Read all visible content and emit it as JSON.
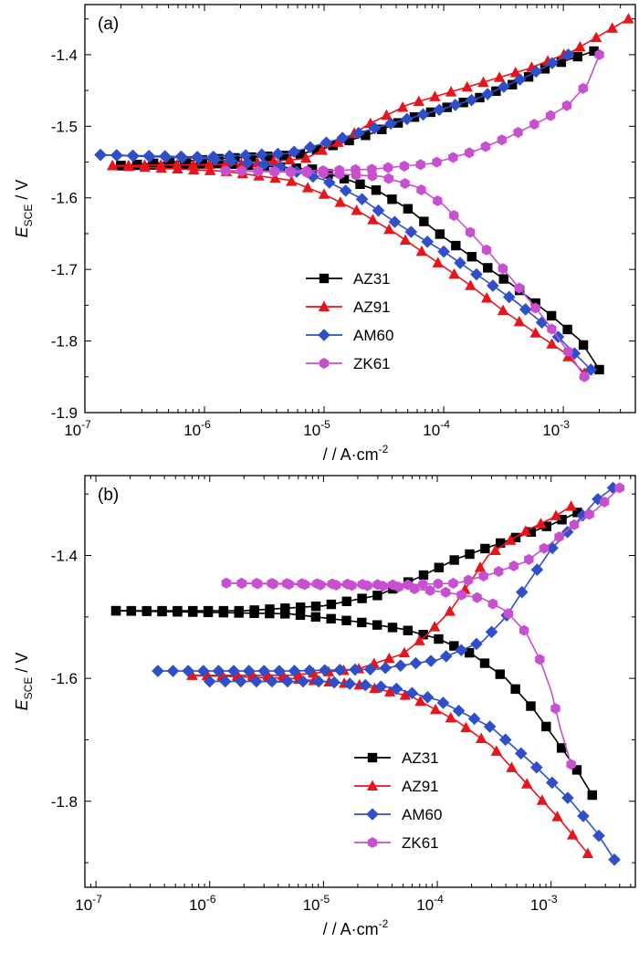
{
  "colors": {
    "AZ31": "#000000",
    "AZ91": "#e8141c",
    "AM60": "#2f4fc9",
    "ZK61": "#c850d0"
  },
  "chart_data": [
    {
      "panel_label": "(a)",
      "type": "line",
      "x_scale": "log",
      "xlim": [
        1e-07,
        0.004
      ],
      "ylim": [
        -1.9,
        -1.33
      ],
      "xticks": [
        {
          "v": 1e-07,
          "base": "10",
          "exp": "-7"
        },
        {
          "v": 1e-06,
          "base": "10",
          "exp": "-6"
        },
        {
          "v": 1e-05,
          "base": "10",
          "exp": "-5"
        },
        {
          "v": 0.0001,
          "base": "10",
          "exp": "-4"
        },
        {
          "v": 0.001,
          "base": "10",
          "exp": "-3"
        }
      ],
      "yticks": [
        {
          "v": -1.4,
          "label": "-1.4"
        },
        {
          "v": -1.5,
          "label": "-1.5"
        },
        {
          "v": -1.6,
          "label": "-1.6"
        },
        {
          "v": -1.7,
          "label": "-1.7"
        },
        {
          "v": -1.8,
          "label": "-1.8"
        },
        {
          "v": -1.9,
          "label": "-1.9"
        }
      ],
      "xlabel": "/ / A·cm",
      "xlabel_sup": "-2",
      "ylabel_main": "E",
      "ylabel_sub": "SCE",
      "ylabel_unit": " / V",
      "legend_position": "middle",
      "series": [
        {
          "name": "AZ31",
          "anodic": [
            [
              2e-07,
              -1.555
            ],
            [
              1.4e-06,
              -1.545
            ],
            [
              6e-06,
              -1.54
            ],
            [
              1.3e-05,
              -1.525
            ],
            [
              2.5e-05,
              -1.51
            ],
            [
              5e-05,
              -1.49
            ],
            [
              0.0001,
              -1.475
            ],
            [
              0.0002,
              -1.46
            ],
            [
              0.0004,
              -1.44
            ],
            [
              0.0008,
              -1.415
            ],
            [
              0.0018,
              -1.395
            ]
          ],
          "cathodic": [
            [
              2e-07,
              -1.555
            ],
            [
              1.4e-06,
              -1.552
            ],
            [
              8e-06,
              -1.56
            ],
            [
              1.6e-05,
              -1.575
            ],
            [
              2.8e-05,
              -1.59
            ],
            [
              5e-05,
              -1.615
            ],
            [
              0.0001,
              -1.655
            ],
            [
              0.0002,
              -1.69
            ],
            [
              0.0004,
              -1.725
            ],
            [
              0.0008,
              -1.765
            ],
            [
              0.0014,
              -1.8
            ],
            [
              0.002,
              -1.84
            ]
          ]
        },
        {
          "name": "AZ91",
          "anodic": [
            [
              1.7e-07,
              -1.555
            ],
            [
              2e-06,
              -1.553
            ],
            [
              7e-06,
              -1.545
            ],
            [
              1.4e-05,
              -1.52
            ],
            [
              2.5e-05,
              -1.495
            ],
            [
              5e-05,
              -1.47
            ],
            [
              0.0001,
              -1.455
            ],
            [
              0.0002,
              -1.44
            ],
            [
              0.0005,
              -1.42
            ],
            [
              0.0012,
              -1.395
            ],
            [
              0.0035,
              -1.35
            ]
          ],
          "cathodic": [
            [
              1.7e-07,
              -1.555
            ],
            [
              1.5e-06,
              -1.563
            ],
            [
              5e-06,
              -1.575
            ],
            [
              1e-05,
              -1.595
            ],
            [
              2e-05,
              -1.62
            ],
            [
              4e-05,
              -1.65
            ],
            [
              8e-05,
              -1.685
            ],
            [
              0.00016,
              -1.72
            ],
            [
              0.0003,
              -1.755
            ],
            [
              0.0006,
              -1.79
            ],
            [
              0.001,
              -1.815
            ],
            [
              0.0015,
              -1.845
            ]
          ]
        },
        {
          "name": "AM60",
          "anodic": [
            [
              1.35e-07,
              -1.54
            ],
            [
              1e-06,
              -1.543
            ],
            [
              5e-06,
              -1.538
            ],
            [
              1.2e-05,
              -1.52
            ],
            [
              3e-05,
              -1.5
            ],
            [
              8e-05,
              -1.48
            ],
            [
              0.0002,
              -1.46
            ],
            [
              0.0005,
              -1.43
            ],
            [
              0.0011,
              -1.4
            ]
          ],
          "cathodic": [
            [
              1.35e-07,
              -1.54
            ],
            [
              1e-06,
              -1.545
            ],
            [
              4e-06,
              -1.555
            ],
            [
              1e-05,
              -1.575
            ],
            [
              2e-05,
              -1.6
            ],
            [
              4e-05,
              -1.635
            ],
            [
              0.0001,
              -1.675
            ],
            [
              0.0002,
              -1.71
            ],
            [
              0.0004,
              -1.745
            ],
            [
              0.0008,
              -1.785
            ],
            [
              0.0012,
              -1.815
            ],
            [
              0.0017,
              -1.84
            ]
          ]
        },
        {
          "name": "ZK61",
          "anodic": [
            [
              1.5e-06,
              -1.562
            ],
            [
              4e-06,
              -1.563
            ],
            [
              1e-05,
              -1.562
            ],
            [
              2.5e-05,
              -1.56
            ],
            [
              8e-05,
              -1.552
            ],
            [
              0.00018,
              -1.535
            ],
            [
              0.00035,
              -1.515
            ],
            [
              0.0007,
              -1.49
            ],
            [
              0.0011,
              -1.47
            ],
            [
              0.0016,
              -1.44
            ],
            [
              0.002,
              -1.4
            ]
          ],
          "cathodic": [
            [
              1.5e-06,
              -1.562
            ],
            [
              8e-06,
              -1.565
            ],
            [
              3e-05,
              -1.57
            ],
            [
              6e-05,
              -1.585
            ],
            [
              0.0001,
              -1.61
            ],
            [
              0.00016,
              -1.645
            ],
            [
              0.00025,
              -1.68
            ],
            [
              0.0004,
              -1.72
            ],
            [
              0.0007,
              -1.77
            ],
            [
              0.0011,
              -1.815
            ],
            [
              0.0015,
              -1.85
            ]
          ]
        }
      ]
    },
    {
      "panel_label": "(b)",
      "type": "line",
      "x_scale": "log",
      "xlim": [
        8e-08,
        0.0055
      ],
      "ylim": [
        -1.94,
        -1.27
      ],
      "xticks": [
        {
          "v": 1e-07,
          "base": "10",
          "exp": "-7"
        },
        {
          "v": 1e-06,
          "base": "10",
          "exp": "-6"
        },
        {
          "v": 1e-05,
          "base": "10",
          "exp": "-5"
        },
        {
          "v": 0.0001,
          "base": "10",
          "exp": "-4"
        },
        {
          "v": 0.001,
          "base": "10",
          "exp": "-3"
        }
      ],
      "yticks": [
        {
          "v": -1.4,
          "label": "-1.4"
        },
        {
          "v": -1.6,
          "label": "-1.6"
        },
        {
          "v": -1.8,
          "label": "-1.8"
        }
      ],
      "xlabel": "/ / A·cm",
      "xlabel_sup": "-2",
      "ylabel_main": "E",
      "ylabel_sub": "SCE",
      "ylabel_unit": " / V",
      "legend_position": "bottom-right",
      "series": [
        {
          "name": "AZ31",
          "anodic": [
            [
              1.5e-07,
              -1.49
            ],
            [
              2e-06,
              -1.49
            ],
            [
              1e-05,
              -1.482
            ],
            [
              3e-05,
              -1.465
            ],
            [
              7e-05,
              -1.435
            ],
            [
              0.00015,
              -1.405
            ],
            [
              0.0003,
              -1.385
            ],
            [
              0.0006,
              -1.365
            ],
            [
              0.001,
              -1.35
            ],
            [
              0.0017,
              -1.33
            ]
          ],
          "cathodic": [
            [
              1.5e-07,
              -1.49
            ],
            [
              5e-06,
              -1.495
            ],
            [
              2e-05,
              -1.508
            ],
            [
              5e-05,
              -1.52
            ],
            [
              0.0001,
              -1.535
            ],
            [
              0.0002,
              -1.56
            ],
            [
              0.0004,
              -1.6
            ],
            [
              0.0007,
              -1.65
            ],
            [
              0.0011,
              -1.7
            ],
            [
              0.0017,
              -1.75
            ],
            [
              0.0023,
              -1.79
            ]
          ]
        },
        {
          "name": "AZ91",
          "anodic": [
            [
              7e-07,
              -1.595
            ],
            [
              5e-06,
              -1.595
            ],
            [
              2e-05,
              -1.585
            ],
            [
              5e-05,
              -1.56
            ],
            [
              8e-05,
              -1.53
            ],
            [
              0.00013,
              -1.49
            ],
            [
              0.0002,
              -1.44
            ],
            [
              0.00028,
              -1.4
            ],
            [
              0.0004,
              -1.38
            ],
            [
              0.0006,
              -1.36
            ],
            [
              0.001,
              -1.34
            ],
            [
              0.0015,
              -1.32
            ]
          ],
          "cathodic": [
            [
              7e-07,
              -1.595
            ],
            [
              5e-06,
              -1.6
            ],
            [
              2e-05,
              -1.61
            ],
            [
              6e-05,
              -1.63
            ],
            [
              0.00015,
              -1.67
            ],
            [
              0.0003,
              -1.71
            ],
            [
              0.0006,
              -1.77
            ],
            [
              0.0012,
              -1.83
            ],
            [
              0.0021,
              -1.885
            ]
          ]
        },
        {
          "name": "AM60",
          "anodic": [
            [
              3.5e-07,
              -1.588
            ],
            [
              5e-06,
              -1.588
            ],
            [
              3e-05,
              -1.585
            ],
            [
              0.0001,
              -1.57
            ],
            [
              0.00025,
              -1.54
            ],
            [
              0.0004,
              -1.5
            ],
            [
              0.0006,
              -1.45
            ],
            [
              0.001,
              -1.39
            ],
            [
              0.0016,
              -1.35
            ],
            [
              0.0025,
              -1.31
            ],
            [
              0.0035,
              -1.29
            ]
          ],
          "cathodic": [
            [
              1e-06,
              -1.605
            ],
            [
              1e-05,
              -1.605
            ],
            [
              4e-05,
              -1.615
            ],
            [
              0.0001,
              -1.635
            ],
            [
              0.0003,
              -1.68
            ],
            [
              0.0007,
              -1.74
            ],
            [
              0.0015,
              -1.8
            ],
            [
              0.0025,
              -1.85
            ],
            [
              0.0036,
              -1.895
            ]
          ]
        },
        {
          "name": "ZK61",
          "anodic": [
            [
              1.4e-06,
              -1.445
            ],
            [
              1e-05,
              -1.446
            ],
            [
              5e-05,
              -1.448
            ],
            [
              0.00015,
              -1.445
            ],
            [
              0.0003,
              -1.43
            ],
            [
              0.0006,
              -1.41
            ],
            [
              0.001,
              -1.38
            ],
            [
              0.0016,
              -1.35
            ],
            [
              0.0025,
              -1.325
            ],
            [
              0.0035,
              -1.3
            ],
            [
              0.004,
              -1.29
            ]
          ],
          "cathodic": [
            [
              1.4e-06,
              -1.445
            ],
            [
              4e-05,
              -1.45
            ],
            [
              0.00012,
              -1.46
            ],
            [
              0.00025,
              -1.47
            ],
            [
              0.0004,
              -1.49
            ],
            [
              0.0006,
              -1.525
            ],
            [
              0.0008,
              -1.57
            ],
            [
              0.001,
              -1.62
            ],
            [
              0.0012,
              -1.68
            ],
            [
              0.0015,
              -1.74
            ]
          ]
        }
      ]
    }
  ]
}
